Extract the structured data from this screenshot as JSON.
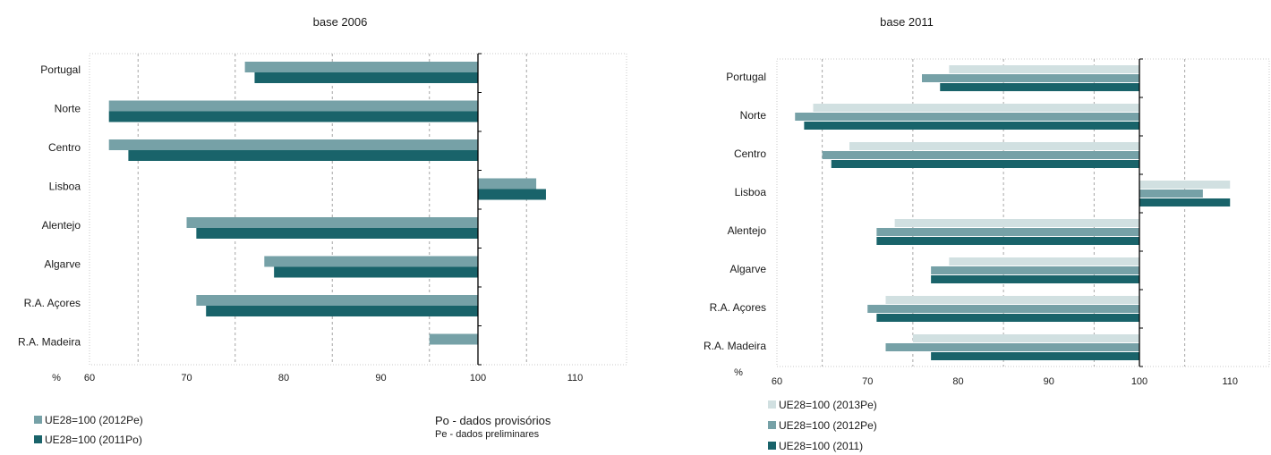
{
  "chart_data": [
    {
      "type": "bar",
      "orientation": "horizontal",
      "title": "base 2006",
      "xlabel": "%",
      "categories": [
        "Portugal",
        "Norte",
        "Centro",
        "Lisboa",
        "Alentejo",
        "Algarve",
        "R.A. Açores",
        "R.A. Madeira"
      ],
      "xlim": [
        60,
        115
      ],
      "baseline": 100,
      "ticks": [
        "60",
        "70",
        "80",
        "90",
        "100",
        "110"
      ],
      "tick_values": [
        60,
        70,
        80,
        90,
        100,
        110
      ],
      "gridlines": [
        65,
        75,
        85,
        95,
        105
      ],
      "series": [
        {
          "name": "UE28=100 (2012Pe)",
          "color": "#76a1a7",
          "values": [
            76,
            62,
            62,
            106,
            70,
            78,
            71,
            95
          ]
        },
        {
          "name": "UE28=100 (2011Po)",
          "color": "#19636a",
          "values": [
            77,
            62,
            64,
            107,
            71,
            79,
            72,
            null
          ]
        }
      ],
      "notes": [
        "Po - dados provisórios",
        "Pe - dados preliminares"
      ]
    },
    {
      "type": "bar",
      "orientation": "horizontal",
      "title": "base 2011",
      "xlabel": "%",
      "categories": [
        "Portugal",
        "Norte",
        "Centro",
        "Lisboa",
        "Alentejo",
        "Algarve",
        "R.A. Açores",
        "R.A. Madeira"
      ],
      "xlim": [
        60,
        115
      ],
      "baseline": 100,
      "ticks": [
        "60",
        "70",
        "80",
        "90",
        "100",
        "110"
      ],
      "tick_values": [
        60,
        70,
        80,
        90,
        100,
        110
      ],
      "gridlines": [
        65,
        75,
        85,
        95,
        105
      ],
      "series": [
        {
          "name": "UE28=100 (2013Pe)",
          "color": "#d1e0e1",
          "values": [
            79,
            64,
            68,
            110,
            73,
            79,
            72,
            75
          ]
        },
        {
          "name": "UE28=100 (2012Pe)",
          "color": "#76a1a7",
          "values": [
            76,
            62,
            65,
            107,
            71,
            77,
            70,
            72
          ]
        },
        {
          "name": "UE28=100 (2011)",
          "color": "#19636a",
          "values": [
            78,
            63,
            66,
            110,
            71,
            77,
            71,
            77
          ]
        }
      ]
    }
  ]
}
